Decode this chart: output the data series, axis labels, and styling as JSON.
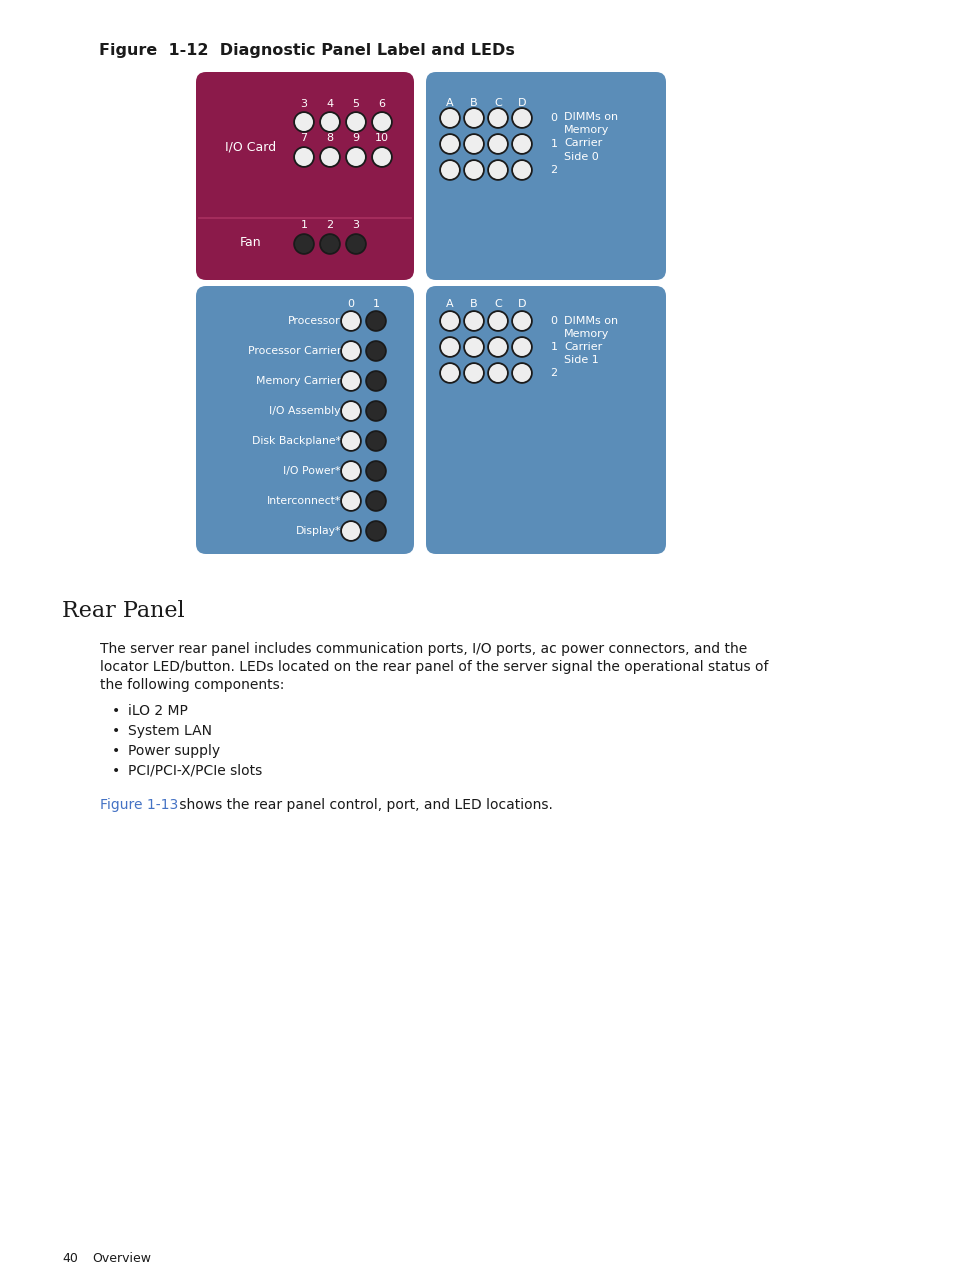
{
  "figure_title": "Figure  1-12  Diagnostic Panel Label and LEDs",
  "page_bg": "#ffffff",
  "maroon": "#8B1A4A",
  "blue": "#5B8DB8",
  "white": "#ffffff",
  "led_outline": "#1a1a1a",
  "led_fill_white": "#eeeeee",
  "led_fill_dark": "#2a2a2a",
  "section_heading": "Rear Panel",
  "body_line1": "The server rear panel includes communication ports, I/O ports, ac power connectors, and the",
  "body_line2": "locator LED/button. LEDs located on the rear panel of the server signal the operational status of",
  "body_line3": "the following components:",
  "bullet_items": [
    "iLO 2 MP",
    "System LAN",
    "Power supply",
    "PCI/PCI-X/PCIe slots"
  ],
  "footer_text": " shows the rear panel control, port, and LED locations.",
  "footer_link": "Figure 1-13",
  "page_number": "40",
  "page_section": "Overview"
}
